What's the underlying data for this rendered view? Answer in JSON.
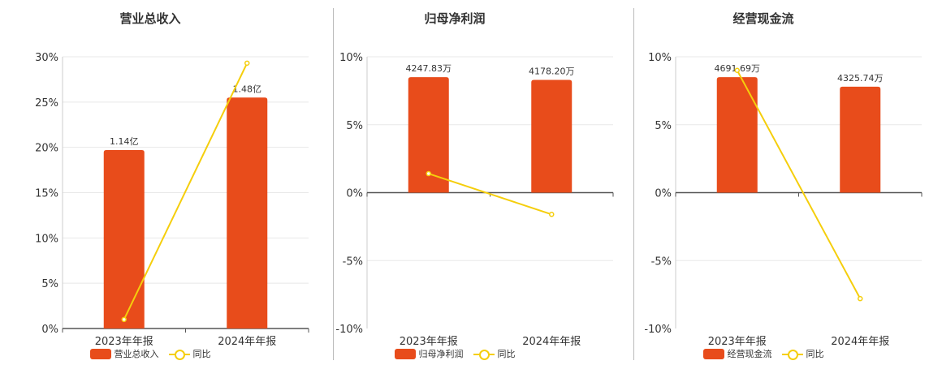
{
  "colors": {
    "bar": "#E84C1B",
    "line": "#F5CE0C",
    "axis": "#555555",
    "grid": "#E8E8E8"
  },
  "legend": {
    "yoy_label": "同比"
  },
  "chart_data": [
    {
      "type": "bar",
      "title": "营业总收入",
      "categories": [
        "2023年年报",
        "2024年年报"
      ],
      "ylim": [
        0,
        30
      ],
      "yticks": [
        0,
        5,
        10,
        15,
        20,
        25,
        30
      ],
      "ytick_labels": [
        "0%",
        "5%",
        "10%",
        "15%",
        "20%",
        "25%",
        "30%"
      ],
      "series": [
        {
          "name": "营业总收入",
          "type": "bar",
          "values": [
            19.7,
            25.5
          ],
          "labels": [
            "1.14亿",
            "1.48亿"
          ]
        },
        {
          "name": "同比",
          "type": "line",
          "values": [
            1.0,
            29.3
          ]
        }
      ],
      "grid": true,
      "legend_position": "bottom"
    },
    {
      "type": "bar",
      "title": "归母净利润",
      "categories": [
        "2023年年报",
        "2024年年报"
      ],
      "ylim": [
        -10,
        10
      ],
      "yticks": [
        -10,
        -5,
        0,
        5,
        10
      ],
      "ytick_labels": [
        "-10%",
        "-5%",
        "0%",
        "5%",
        "10%"
      ],
      "series": [
        {
          "name": "归母净利润",
          "type": "bar",
          "values": [
            8.5,
            8.3
          ],
          "labels": [
            "4247.83万",
            "4178.20万"
          ]
        },
        {
          "name": "同比",
          "type": "line",
          "values": [
            1.4,
            -1.6
          ]
        }
      ],
      "grid": true,
      "legend_position": "bottom"
    },
    {
      "type": "bar",
      "title": "经营现金流",
      "categories": [
        "2023年年报",
        "2024年年报"
      ],
      "ylim": [
        -10,
        10
      ],
      "yticks": [
        -10,
        -5,
        0,
        5,
        10
      ],
      "ytick_labels": [
        "-10%",
        "-5%",
        "0%",
        "5%",
        "10%"
      ],
      "series": [
        {
          "name": "经营现金流",
          "type": "bar",
          "values": [
            8.5,
            7.8
          ],
          "labels": [
            "4691.69万",
            "4325.74万"
          ]
        },
        {
          "name": "同比",
          "type": "line",
          "values": [
            9.0,
            -7.8
          ]
        }
      ],
      "grid": true,
      "legend_position": "bottom"
    }
  ]
}
